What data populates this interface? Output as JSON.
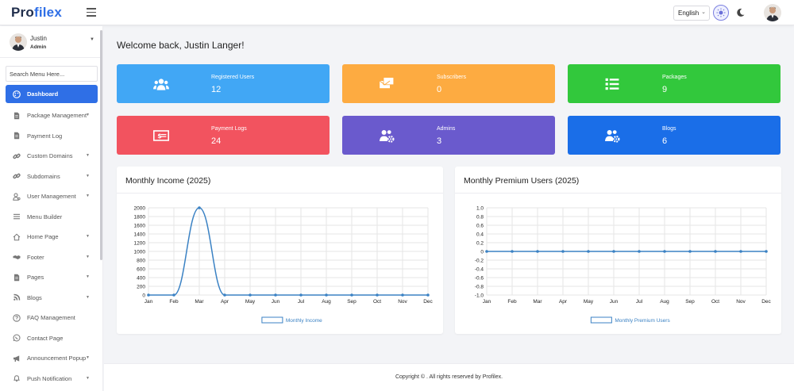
{
  "header": {
    "logo_main": "Pro",
    "logo_accent": "filex",
    "language": "English",
    "icons": [
      "menu-icon",
      "chevron-down-icon",
      "sun-icon",
      "moon-icon"
    ]
  },
  "sidebar": {
    "user": {
      "name": "Justin",
      "role": "Admin"
    },
    "search_placeholder": "Search Menu Here...",
    "items": [
      {
        "label": "Dashboard",
        "icon": "palette-icon",
        "active": true,
        "has_caret": false
      },
      {
        "label": "Package Management",
        "icon": "file-icon",
        "has_caret": true
      },
      {
        "label": "Payment Log",
        "icon": "file-icon",
        "has_caret": false
      },
      {
        "label": "Custom Domains",
        "icon": "link-icon",
        "has_caret": true
      },
      {
        "label": "Subdomains",
        "icon": "link-icon",
        "has_caret": true
      },
      {
        "label": "User Management",
        "icon": "user-icon",
        "has_caret": true
      },
      {
        "label": "Menu Builder",
        "icon": "bars-icon",
        "has_caret": false
      },
      {
        "label": "Home Page",
        "icon": "home-icon",
        "has_caret": true
      },
      {
        "label": "Footer",
        "icon": "handshake-icon",
        "has_caret": true
      },
      {
        "label": "Pages",
        "icon": "file-icon",
        "has_caret": true
      },
      {
        "label": "Blogs",
        "icon": "blog-icon",
        "has_caret": true
      },
      {
        "label": "FAQ Management",
        "icon": "question-icon",
        "has_caret": false
      },
      {
        "label": "Contact Page",
        "icon": "whatsapp-icon",
        "has_caret": false
      },
      {
        "label": "Announcement Popup",
        "icon": "bullhorn-icon",
        "has_caret": true
      },
      {
        "label": "Push Notification",
        "icon": "bell-icon",
        "has_caret": true
      }
    ]
  },
  "main": {
    "welcome": "Welcome back, Justin Langer!",
    "cards": [
      {
        "label": "Registered Users",
        "value": "12",
        "color": "#41a7f5",
        "icon": "users-icon"
      },
      {
        "label": "Subscribers",
        "value": "0",
        "color": "#fdab41",
        "icon": "mail-bulk-icon"
      },
      {
        "label": "Packages",
        "value": "9",
        "color": "#32c83c",
        "icon": "list-icon"
      },
      {
        "label": "Payment Logs",
        "value": "24",
        "color": "#f2535f",
        "icon": "money-bill-icon"
      },
      {
        "label": "Admins",
        "value": "3",
        "color": "#6a5acd",
        "icon": "users-cog-icon"
      },
      {
        "label": "Blogs",
        "value": "6",
        "color": "#1a6ee8",
        "icon": "users-cog-icon"
      }
    ]
  },
  "chart_data": [
    {
      "type": "line",
      "title": "Monthly Income (2025)",
      "x": [
        "Jan",
        "Feb",
        "Mar",
        "Apr",
        "May",
        "Jun",
        "Jul",
        "Aug",
        "Sep",
        "Oct",
        "Nov",
        "Dec"
      ],
      "series": [
        {
          "name": "Monthly Income",
          "values": [
            0,
            0,
            2000,
            0,
            0,
            0,
            0,
            0,
            0,
            0,
            0,
            0
          ]
        }
      ],
      "ylim": [
        0,
        2000
      ],
      "yticks": [
        "0",
        "200",
        "400",
        "600",
        "800",
        "1000",
        "1200",
        "1400",
        "1600",
        "1800",
        "2000"
      ],
      "legend": "bottom",
      "grid": true,
      "line_color": "#3b82c4"
    },
    {
      "type": "line",
      "title": "Monthly Premium Users (2025)",
      "x": [
        "Jan",
        "Feb",
        "Mar",
        "Apr",
        "May",
        "Jun",
        "Jul",
        "Aug",
        "Sep",
        "Oct",
        "Nov",
        "Dec"
      ],
      "series": [
        {
          "name": "Monthly Premium Users",
          "values": [
            0,
            0,
            0,
            0,
            0,
            0,
            0,
            0,
            0,
            0,
            0,
            0
          ]
        }
      ],
      "ylim": [
        -1.0,
        1.0
      ],
      "yticks": [
        "-1.0",
        "-0.8",
        "-0.6",
        "-0.4",
        "-0.2",
        "0",
        "0.2",
        "0.4",
        "0.6",
        "0.8",
        "1.0"
      ],
      "legend": "bottom",
      "grid": true,
      "line_color": "#3b82c4"
    }
  ],
  "footer": {
    "text": "Copyright © . All rights reserved by Profilex."
  }
}
